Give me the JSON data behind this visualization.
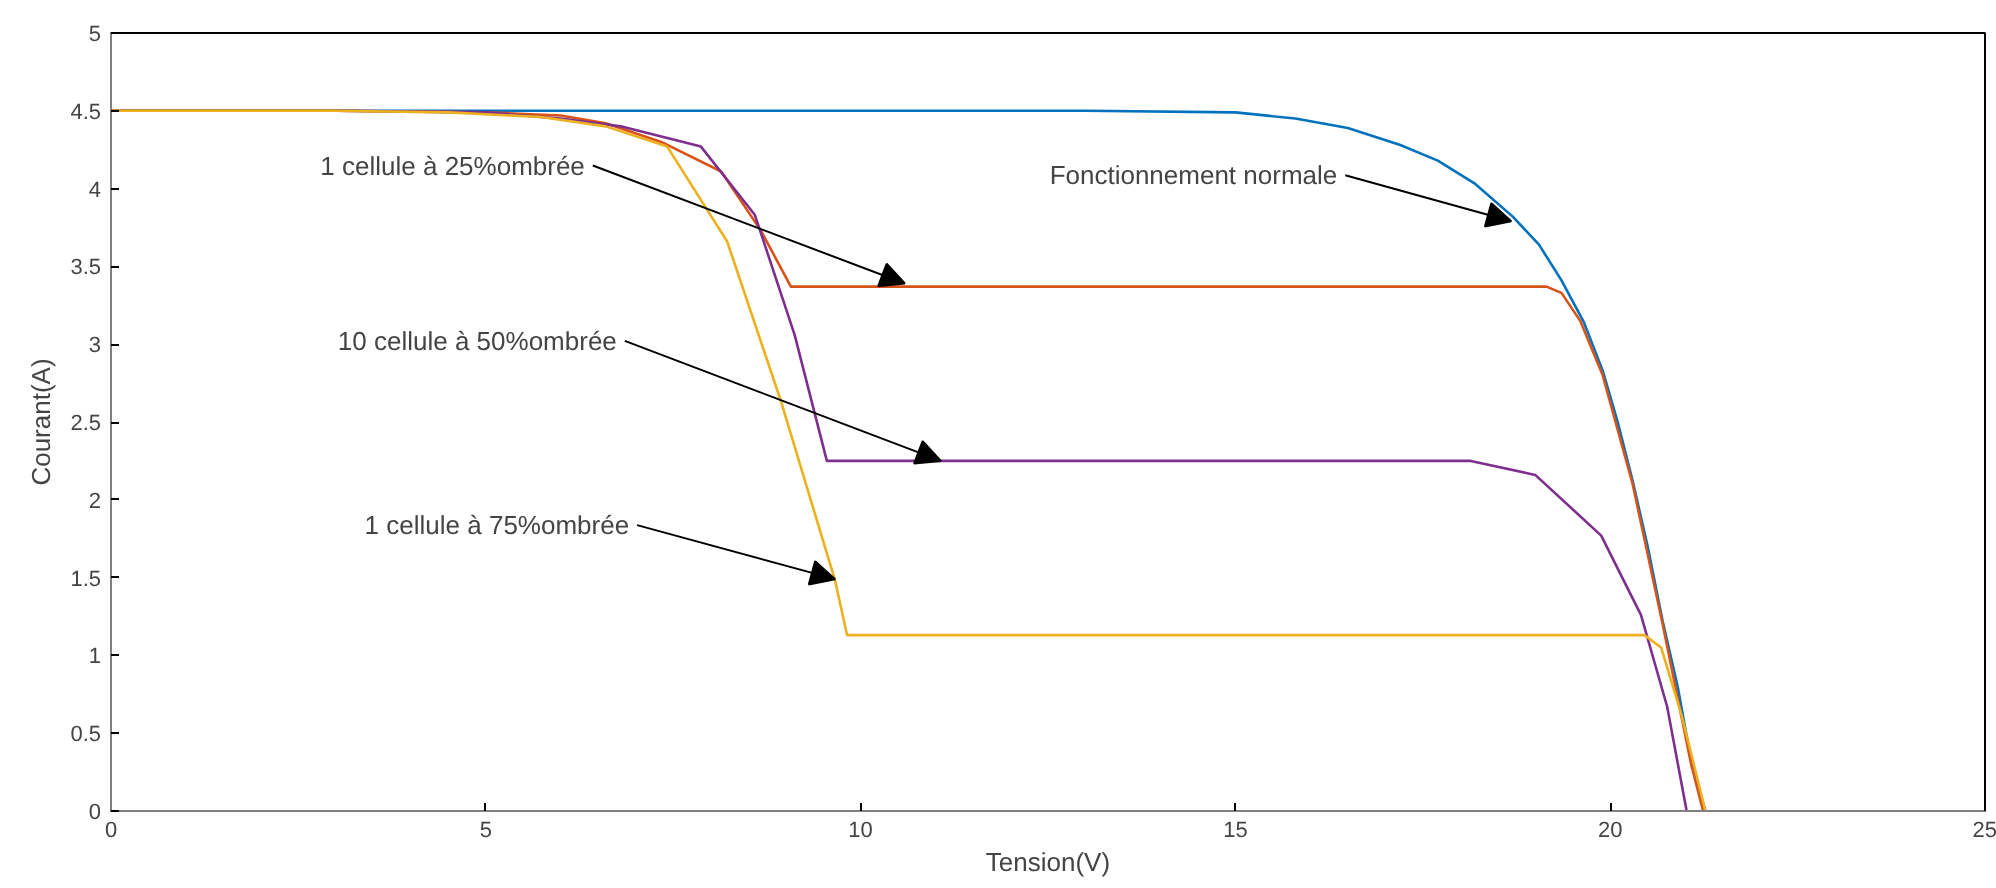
{
  "chart_data": {
    "type": "line",
    "xlabel": "Tension(V)",
    "ylabel": "Courant(A)",
    "xlim": [
      0,
      25
    ],
    "ylim": [
      0,
      5
    ],
    "xticks": [
      0,
      5,
      10,
      15,
      20,
      25
    ],
    "yticks": [
      0,
      {
        "value": 0.5,
        "label": "0.5"
      },
      1,
      {
        "value": 1.5,
        "label": "1.5"
      },
      2,
      {
        "value": 2.5,
        "label": "2.5"
      },
      3,
      {
        "value": 3.5,
        "label": "3.5"
      },
      4,
      {
        "value": 4.5,
        "label": "4.5"
      },
      5
    ],
    "grid": false,
    "line_style": "solid",
    "marker": "none",
    "series": [
      {
        "color": "#0072bd",
        "x": [
          0,
          5,
          10,
          13,
          15,
          15.8,
          16.5,
          17.2,
          17.7,
          18.2,
          18.7,
          19.05,
          19.35,
          19.65,
          19.9,
          20.1,
          20.3,
          20.5,
          20.7,
          20.9,
          21.08,
          21.27
        ],
        "values": [
          4.5,
          4.5,
          4.5,
          4.5,
          4.49,
          4.45,
          4.39,
          4.28,
          4.18,
          4.03,
          3.82,
          3.64,
          3.41,
          3.14,
          2.83,
          2.5,
          2.12,
          1.7,
          1.22,
          0.8,
          0.32,
          0
        ]
      },
      {
        "color": "#d95319",
        "x": [
          0,
          3,
          5,
          6,
          6.6,
          7.34,
          8.14,
          8.67,
          9.07,
          19.15,
          19.35,
          19.6,
          19.9,
          20.3,
          20.7,
          21.08,
          21.24
        ],
        "values": [
          4.5,
          4.5,
          4.49,
          4.47,
          4.42,
          4.3,
          4.11,
          3.73,
          3.37,
          3.37,
          3.33,
          3.15,
          2.8,
          2.1,
          1.2,
          0.3,
          0
        ]
      },
      {
        "color": "#7e2f8e",
        "x": [
          0,
          3,
          5,
          6,
          6.8,
          7.87,
          8.59,
          9.12,
          9.55,
          18.14,
          19.0,
          19.88,
          20.41,
          20.76,
          21.02
        ],
        "values": [
          4.5,
          4.5,
          4.49,
          4.45,
          4.4,
          4.27,
          3.83,
          3.06,
          2.25,
          2.25,
          2.16,
          1.77,
          1.26,
          0.67,
          0
        ]
      },
      {
        "color": "#edb120",
        "x": [
          0,
          3,
          4.5,
          5.74,
          6.6,
          7.42,
          8.22,
          8.94,
          9.66,
          9.82,
          20.46,
          20.68,
          20.95,
          21.27
        ],
        "values": [
          4.5,
          4.5,
          4.49,
          4.46,
          4.4,
          4.27,
          3.66,
          2.63,
          1.48,
          1.13,
          1.13,
          1.05,
          0.62,
          0
        ]
      }
    ],
    "annotations": [
      {
        "text": "Fonctionnement normale",
        "x": 18.68,
        "y": 3.79
      },
      {
        "text": "1 cellule à 25%ombrée",
        "x": 10.59,
        "y": 3.39
      },
      {
        "text": "10 cellule à 50%ombrée",
        "x": 11.07,
        "y": 2.25
      },
      {
        "text": "1 cellule à 75%ombrée",
        "x": 9.66,
        "y": 1.49
      }
    ]
  }
}
